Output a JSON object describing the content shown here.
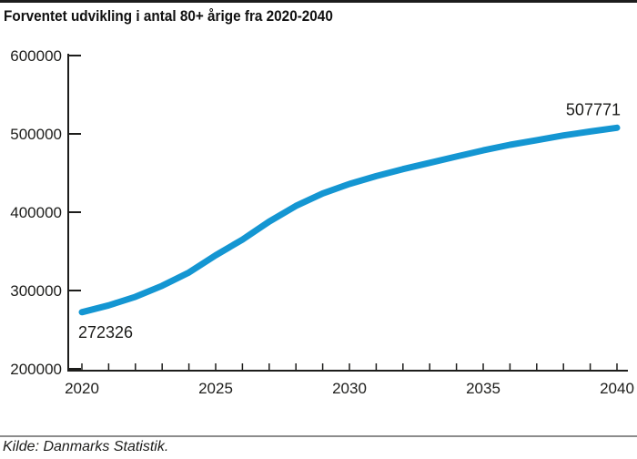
{
  "chart": {
    "title": "Forventet udvikling i antal 80+ årige fra 2020-2040",
    "source": "Kilde: Danmarks Statistik."
  },
  "chart_data": {
    "type": "line",
    "title": "Forventet udvikling i antal 80+ årige fra 2020-2040",
    "x": [
      2020,
      2021,
      2022,
      2023,
      2024,
      2025,
      2026,
      2027,
      2028,
      2029,
      2030,
      2031,
      2032,
      2033,
      2034,
      2035,
      2036,
      2037,
      2038,
      2039,
      2040
    ],
    "values": [
      272326,
      281000,
      292000,
      306000,
      323000,
      345000,
      365000,
      388000,
      408000,
      424000,
      436000,
      446000,
      455000,
      463000,
      471000,
      479000,
      486000,
      492000,
      498000,
      503000,
      507771
    ],
    "x_ticks_labeled": [
      2020,
      2025,
      2030,
      2035,
      2040
    ],
    "y_ticks": [
      200000,
      300000,
      400000,
      500000,
      600000
    ],
    "xlim": [
      2020,
      2040
    ],
    "ylim": [
      200000,
      600000
    ],
    "grid": false,
    "legend": null,
    "line_color": "#1496d2",
    "axis_color": "#1d1d1b",
    "point_labels": [
      {
        "x": 2020,
        "value": 272326,
        "label": "272326",
        "position": "below-start"
      },
      {
        "x": 2040,
        "value": 507771,
        "label": "507771",
        "position": "above-end"
      }
    ],
    "xlabel": "",
    "ylabel": "",
    "source": "Kilde: Danmarks Statistik."
  }
}
